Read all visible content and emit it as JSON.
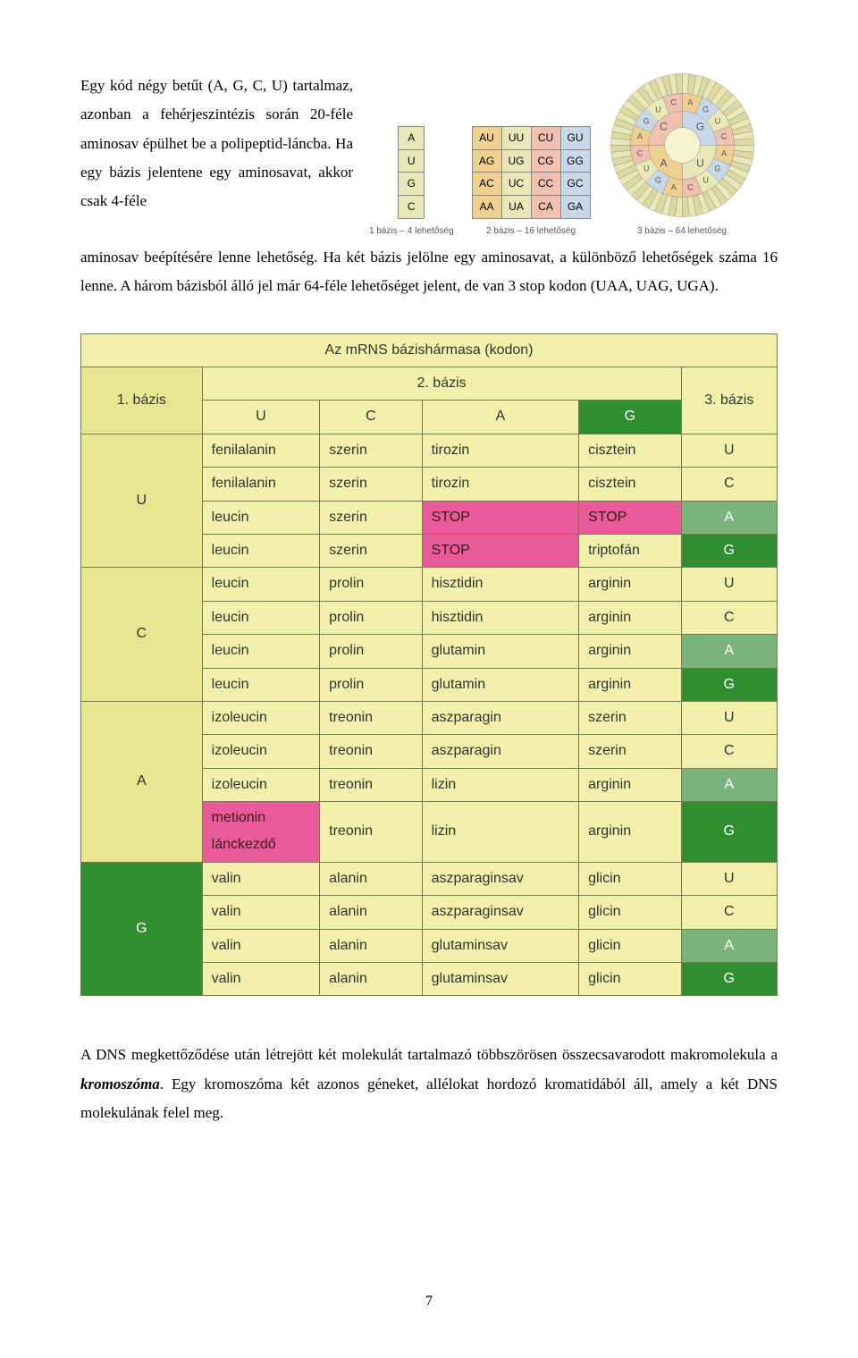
{
  "para1_top": "Egy kód négy betűt (A, G, C, U) tartalmaz, azonban a fehérjeszintézis során 20-féle aminosav épülhet be a polipeptid-láncba. Ha egy bázis jelentene egy aminosavat, akkor csak 4-féle",
  "para1_rest": "aminosav beépítésére lenne lehetőség. Ha két bázis jelölne egy aminosavat, a különböző lehetőségek száma 16 lenne. A három bázisból álló jel már 64-féle lehetőséget jelent, de van 3 stop kodon (UAA, UAG, UGA).",
  "diagram_captions": {
    "d1": "1 bázis – 4 lehetőség",
    "d2": "2 bázis – 16 lehetőség",
    "d3": "3 bázis – 64 lehetőség"
  },
  "single_bases": [
    "A",
    "U",
    "G",
    "C"
  ],
  "pair_cols": [
    "A",
    "U",
    "C",
    "G"
  ],
  "pair_rows": [
    [
      "AU",
      "UU",
      "CU",
      "GU"
    ],
    [
      "AG",
      "UG",
      "CG",
      "GG"
    ],
    [
      "AC",
      "UC",
      "CC",
      "GC"
    ],
    [
      "AA",
      "UA",
      "CA",
      "GA"
    ]
  ],
  "pair_row_classes": [
    "col-u",
    "col-u",
    "col-c",
    "col-a"
  ],
  "wheel_center": [
    "G",
    "U",
    "A",
    "C"
  ],
  "wheel_letters": [
    "A",
    "G",
    "U",
    "C",
    "A",
    "G",
    "U",
    "C",
    "A",
    "G",
    "U",
    "C",
    "A",
    "G",
    "U",
    "C"
  ],
  "codon_table": {
    "title": "Az mRNS bázishármasa (kodon)",
    "h_first": "1. bázis",
    "h_second": "2. bázis",
    "h_third": "3. bázis",
    "second_bases": [
      "U",
      "C",
      "A",
      "G"
    ],
    "first_bases": [
      "U",
      "C",
      "A",
      "G"
    ],
    "third_bases": [
      "U",
      "C",
      "A",
      "G"
    ],
    "rows": [
      [
        [
          "fenilalanin",
          ""
        ],
        [
          "szerin",
          ""
        ],
        [
          "tirozin",
          ""
        ],
        [
          "cisztein",
          ""
        ]
      ],
      [
        [
          "fenilalanin",
          ""
        ],
        [
          "szerin",
          ""
        ],
        [
          "tirozin",
          ""
        ],
        [
          "cisztein",
          ""
        ]
      ],
      [
        [
          "leucin",
          ""
        ],
        [
          "szerin",
          ""
        ],
        [
          "STOP",
          "pink"
        ],
        [
          "STOP",
          "pink"
        ]
      ],
      [
        [
          "leucin",
          ""
        ],
        [
          "szerin",
          ""
        ],
        [
          "STOP",
          "pink"
        ],
        [
          "triptofán",
          ""
        ]
      ],
      [
        [
          "leucin",
          ""
        ],
        [
          "prolin",
          ""
        ],
        [
          "hisztidin",
          ""
        ],
        [
          "arginin",
          ""
        ]
      ],
      [
        [
          "leucin",
          ""
        ],
        [
          "prolin",
          ""
        ],
        [
          "hisztidin",
          ""
        ],
        [
          "arginin",
          ""
        ]
      ],
      [
        [
          "leucin",
          ""
        ],
        [
          "prolin",
          ""
        ],
        [
          "glutamin",
          ""
        ],
        [
          "arginin",
          ""
        ]
      ],
      [
        [
          "leucin",
          ""
        ],
        [
          "prolin",
          ""
        ],
        [
          "glutamin",
          ""
        ],
        [
          "arginin",
          ""
        ]
      ],
      [
        [
          "izoleucin",
          ""
        ],
        [
          "treonin",
          ""
        ],
        [
          "aszparagin",
          ""
        ],
        [
          "szerin",
          ""
        ]
      ],
      [
        [
          "izoleucin",
          ""
        ],
        [
          "treonin",
          ""
        ],
        [
          "aszparagin",
          ""
        ],
        [
          "szerin",
          ""
        ]
      ],
      [
        [
          "izoleucin",
          ""
        ],
        [
          "treonin",
          ""
        ],
        [
          "lizin",
          ""
        ],
        [
          "arginin",
          ""
        ]
      ],
      [
        [
          "metionin lánckezdő",
          "pink"
        ],
        [
          "treonin",
          ""
        ],
        [
          "lizin",
          ""
        ],
        [
          "arginin",
          ""
        ]
      ],
      [
        [
          "valin",
          ""
        ],
        [
          "alanin",
          ""
        ],
        [
          "aszparaginsav",
          ""
        ],
        [
          "glicin",
          ""
        ]
      ],
      [
        [
          "valin",
          ""
        ],
        [
          "alanin",
          ""
        ],
        [
          "aszparaginsav",
          ""
        ],
        [
          "glicin",
          ""
        ]
      ],
      [
        [
          "valin",
          ""
        ],
        [
          "alanin",
          ""
        ],
        [
          "glutaminsav",
          ""
        ],
        [
          "glicin",
          ""
        ]
      ],
      [
        [
          "valin",
          ""
        ],
        [
          "alanin",
          ""
        ],
        [
          "glutaminsav",
          ""
        ],
        [
          "glicin",
          ""
        ]
      ]
    ],
    "colors": {
      "yellow": "#f2f0aa",
      "green_dark": "#2f8f2f",
      "green_light": "#7ab47a",
      "pink": "#e85a9a",
      "border": "#7a7a50"
    }
  },
  "para2_a": "A DNS megkettőződése után létrejött két molekulát tartalmazó többszörösen összecsavarodott makromolekula a ",
  "para2_em": "kromoszóma",
  "para2_b": ". Egy kromoszóma két azonos géneket, allélokat hordozó kromatidából áll, amely a két DNS molekulának felel meg.",
  "page_number": "7"
}
